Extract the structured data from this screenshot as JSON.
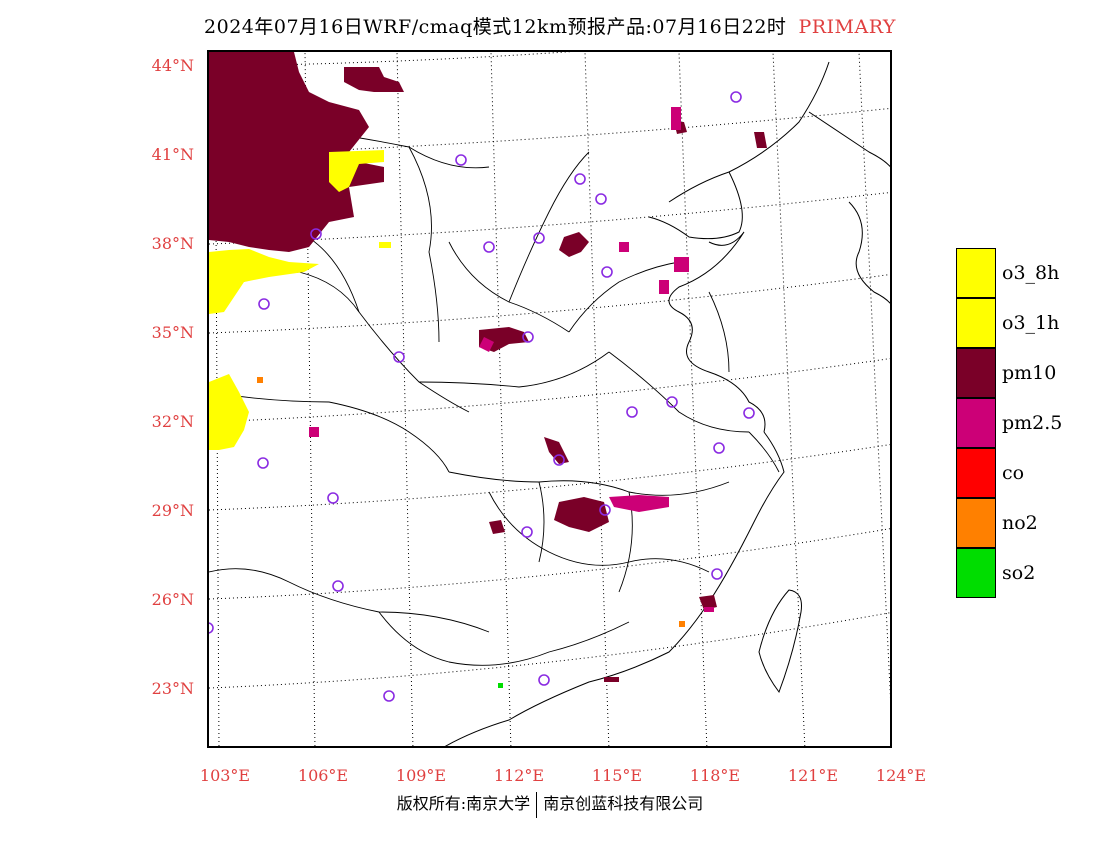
{
  "title": {
    "main": "2024年07月16日WRF/cmaq模式12km预报产品:07月16日22时",
    "tag": "PRIMARY"
  },
  "axes": {
    "lat_labels": [
      "44°N",
      "41°N",
      "38°N",
      "35°N",
      "32°N",
      "29°N",
      "26°N",
      "23°N"
    ],
    "lon_labels": [
      "103°E",
      "106°E",
      "109°E",
      "112°E",
      "115°E",
      "118°E",
      "121°E",
      "124°E"
    ]
  },
  "legend": [
    {
      "label": "o3_8h",
      "color": "#ffff00"
    },
    {
      "label": "o3_1h",
      "color": "#ffff00"
    },
    {
      "label": "pm10",
      "color": "#7a0028"
    },
    {
      "label": "pm2.5",
      "color": "#cc0077"
    },
    {
      "label": "co",
      "color": "#ff0000"
    },
    {
      "label": "no2",
      "color": "#ff8000"
    },
    {
      "label": "so2",
      "color": "#00dd00"
    }
  ],
  "footer": {
    "left": "版权所有:南京大学",
    "right": "南京创蓝科技有限公司"
  },
  "colors": {
    "tick_label": "#e04040",
    "station_marker": "#8a2be2",
    "pm10": "#7a0028",
    "pm25": "#cc0077",
    "o3": "#ffff00",
    "no2": "#ff8000",
    "so2": "#00dd00"
  }
}
